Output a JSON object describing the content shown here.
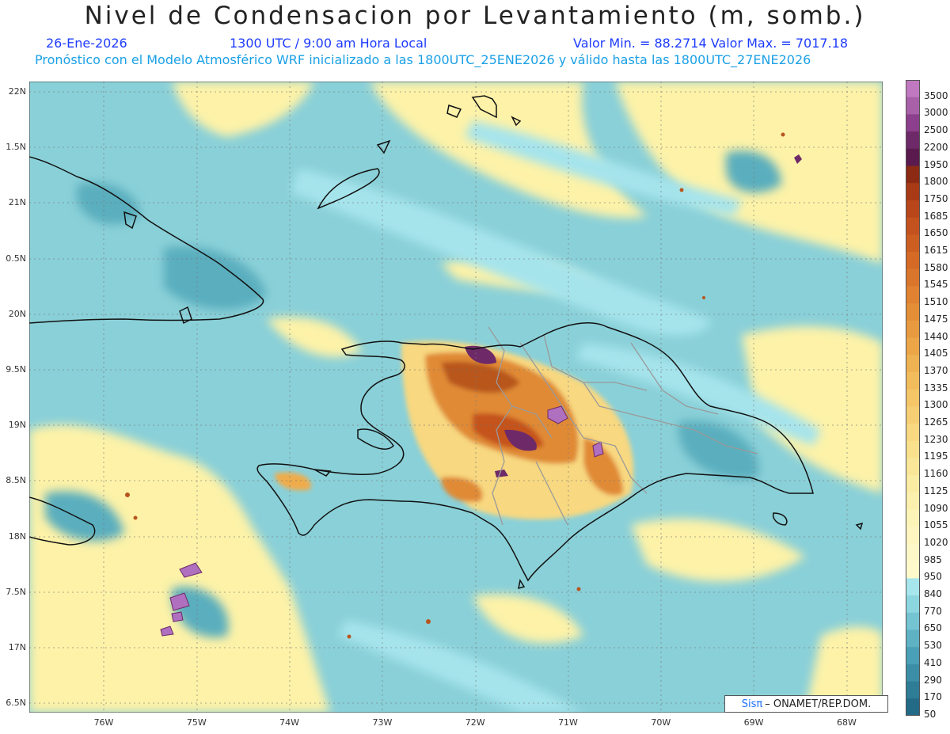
{
  "title": "Nivel de Condensacion por Levantamiento (m, somb.)",
  "date": "26-Ene-2026",
  "time": "1300 UTC / 9:00 am Hora Local",
  "minmax": "Valor Min. = 88.2714  Valor Max. = 7017.18",
  "description": "Pronóstico con el Modelo Atmosférico WRF inicializado a las 1800UTC_25ENE2026 y válido hasta las  1800UTC_27ENE2026",
  "lat_labels": [
    "22N",
    "1.5N",
    "21N",
    "0.5N",
    "20N",
    "9.5N",
    "19N",
    "8.5N",
    "18N",
    "7.5N",
    "17N",
    "6.5N"
  ],
  "lon_labels": [
    "76W",
    "75W",
    "74W",
    "73W",
    "72W",
    "71W",
    "70W",
    "69W",
    "68W"
  ],
  "colorbar": {
    "labels": [
      "3500",
      "3000",
      "2500",
      "2200",
      "1950",
      "1800",
      "1750",
      "1685",
      "1650",
      "1615",
      "1580",
      "1545",
      "1510",
      "1475",
      "1440",
      "1405",
      "1370",
      "1335",
      "1300",
      "1265",
      "1230",
      "1195",
      "1160",
      "1125",
      "1090",
      "1055",
      "1020",
      "985",
      "950",
      "840",
      "770",
      "650",
      "530",
      "410",
      "290",
      "170",
      "50"
    ],
    "colors": [
      "#c079c0",
      "#a860a8",
      "#8c3f8c",
      "#6e2a68",
      "#5a1a4e",
      "#8c2a14",
      "#a83a16",
      "#b8461a",
      "#c4521e",
      "#cc5e22",
      "#d46a26",
      "#da762c",
      "#e08232",
      "#e48e38",
      "#e89a40",
      "#eca648",
      "#efb252",
      "#f2bc5c",
      "#f4c668",
      "#f6cf74",
      "#f8d880",
      "#f9e08c",
      "#fae698",
      "#fbeca4",
      "#fcf0ae",
      "#fdf4b8",
      "#fef6c0",
      "#fef8c8",
      "#fffacc",
      "#a6e6ec",
      "#8cd6e0",
      "#74c4d2",
      "#5eb2c4",
      "#4aa0b6",
      "#3c8ea6",
      "#2e7c96",
      "#226a86"
    ]
  },
  "colors": {
    "sea_base": "#8ad0d8",
    "sea_light": "#a6e4ec",
    "sea_dark": "#5aaebe",
    "dry_yellow": "#fdf2a8",
    "orange": "#e08a36",
    "brown": "#b8561e",
    "purple": "#6e2a68",
    "lilac": "#b070c0",
    "coast": "#111111",
    "province": "#9a9a9a"
  },
  "credit": {
    "brand": "Sisπ",
    "text": "– ONAMET/REP.DOM."
  }
}
